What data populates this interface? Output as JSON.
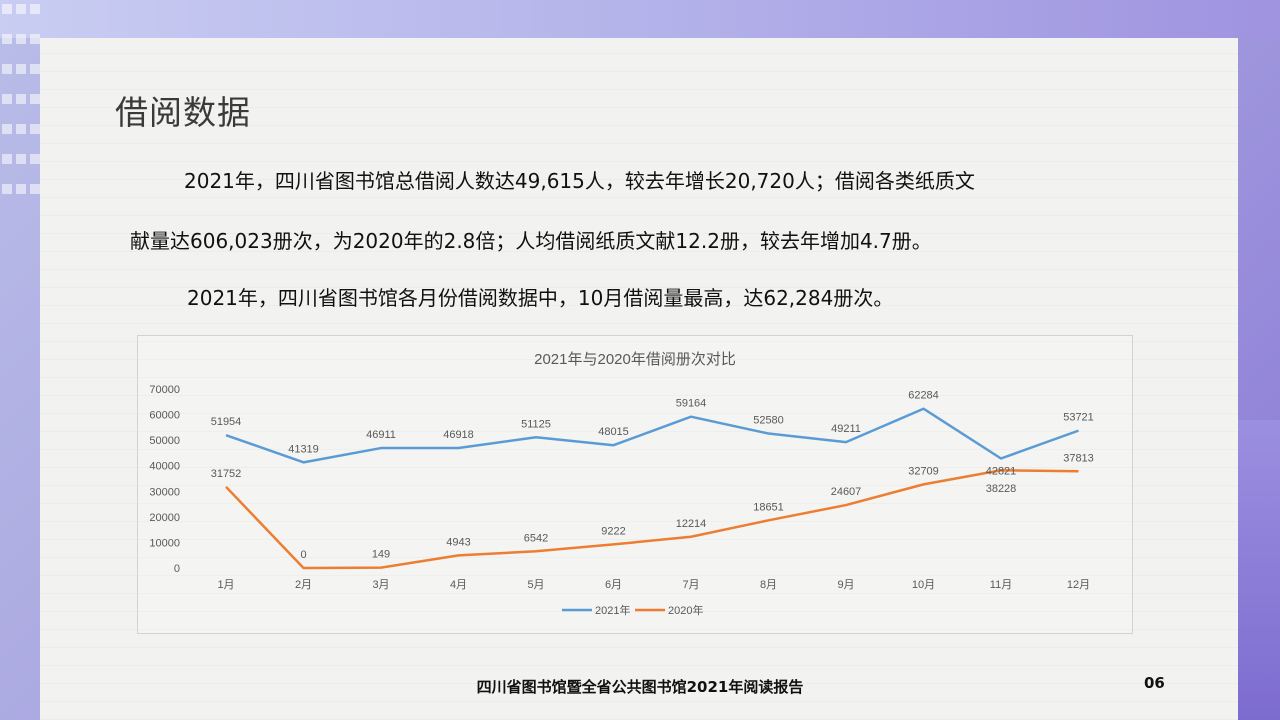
{
  "slide": {
    "title": "借阅数据",
    "paragraph1_line1": "2021年，四川省图书馆总借阅人数达49,615人，较去年增长20,720人；借阅各类纸质文",
    "paragraph1_line2": "献量达606,023册次，为2020年的2.8倍；人均借阅纸质文献12.2册，较去年增加4.7册。",
    "paragraph2": "2021年，四川省图书馆各月份借阅数据中，10月借阅量最高，达62,284册次。",
    "footer": "四川省图书馆暨全省公共图书馆2021年阅读报告",
    "page_number": "06"
  },
  "colors": {
    "series2021": "#5b9bd5",
    "series2020": "#ed7d31",
    "axis_text": "#595959"
  },
  "chart_data": {
    "type": "line",
    "title": "2021年与2020年借阅册次对比",
    "categories": [
      "1月",
      "2月",
      "3月",
      "4月",
      "5月",
      "6月",
      "7月",
      "8月",
      "9月",
      "10月",
      "11月",
      "12月"
    ],
    "series": [
      {
        "name": "2021年",
        "values": [
          51954,
          41319,
          46911,
          46918,
          51125,
          48015,
          59164,
          52580,
          49211,
          62284,
          42821,
          53721
        ]
      },
      {
        "name": "2020年",
        "values": [
          31752,
          0,
          149,
          4943,
          6542,
          9222,
          12214,
          18651,
          24607,
          32709,
          38228,
          37813
        ]
      }
    ],
    "yticks": [
      0,
      10000,
      20000,
      30000,
      40000,
      50000,
      60000,
      70000
    ],
    "ylim": [
      0,
      70000
    ],
    "xlabel": "",
    "ylabel": "",
    "legend": "bottom"
  }
}
